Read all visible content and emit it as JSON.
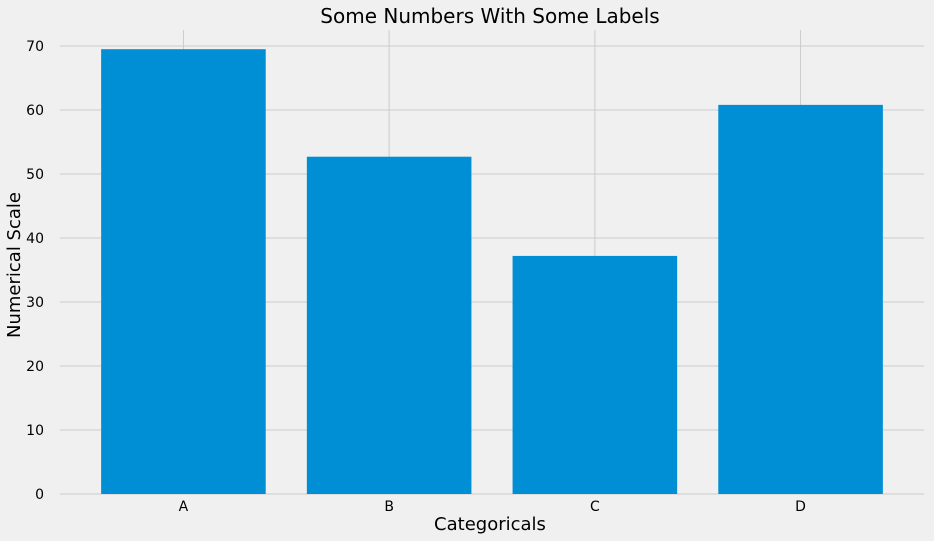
{
  "chart_data": {
    "type": "bar",
    "title": "Some Numbers With Some Labels",
    "xlabel": "Categoricals",
    "ylabel": "Numerical Scale",
    "categories": [
      "A",
      "B",
      "C",
      "D"
    ],
    "values": [
      69.5,
      52.7,
      37.2,
      60.8
    ],
    "ylim": [
      0,
      72.5
    ],
    "yticks": [
      0,
      10,
      20,
      30,
      40,
      50,
      60,
      70
    ],
    "grid": true,
    "colors": {
      "bar": "#008fd5",
      "grid": "#cbcbcb",
      "background": "#f0f0f0"
    }
  }
}
